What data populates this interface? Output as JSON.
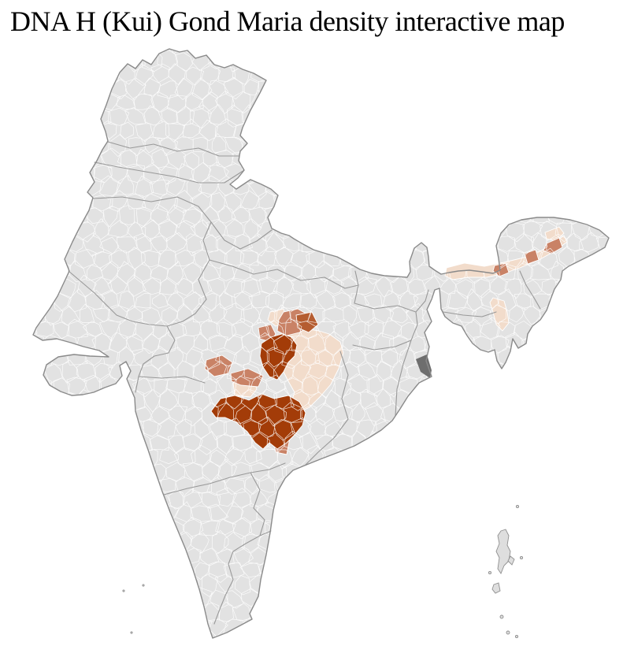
{
  "title": "DNA H (Kui) Gond Maria density interactive map",
  "map": {
    "colors": {
      "background": "#ffffff",
      "land": "#e2e2e2",
      "island_land": "#dedede",
      "district_border": "#ffffff",
      "state_border": "#999999",
      "outline": "#8a8a8a",
      "density_high": "#a33c08",
      "density_medium_high": "#b55d31",
      "density_medium": "#c98266",
      "density_low": "#f2dccb",
      "delta_dark": "#6e6e6e"
    },
    "density_levels": [
      {
        "level": "high",
        "color": "#a33c08"
      },
      {
        "level": "medium-high",
        "color": "#b55d31"
      },
      {
        "level": "medium",
        "color": "#c98266"
      },
      {
        "level": "low",
        "color": "#f2dccb"
      },
      {
        "level": "none",
        "color": "#e2e2e2"
      }
    ],
    "highlighted_areas": [
      {
        "name": "central-india-cluster",
        "densities": [
          "high",
          "medium-high",
          "medium",
          "low"
        ]
      },
      {
        "name": "assam-brahmaputra-valley",
        "densities": [
          "medium",
          "low"
        ]
      }
    ]
  }
}
